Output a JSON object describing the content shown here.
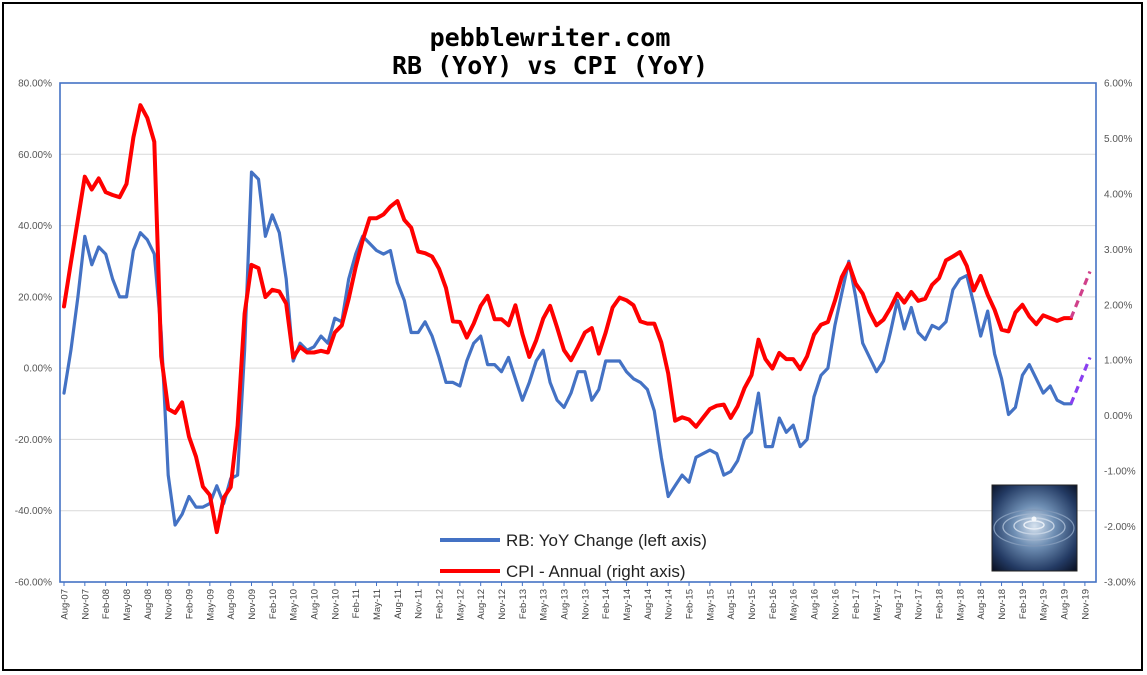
{
  "chart_data": {
    "type": "line",
    "title": "pebblewriter.com",
    "subtitle": "RB (YoY) vs CPI (YoY)",
    "x_labels": [
      "Aug-07",
      "Nov-07",
      "Feb-08",
      "May-08",
      "Aug-08",
      "Nov-08",
      "Feb-09",
      "May-09",
      "Aug-09",
      "Nov-09",
      "Feb-10",
      "May-10",
      "Aug-10",
      "Nov-10",
      "Feb-11",
      "May-11",
      "Aug-11",
      "Nov-11",
      "Feb-12",
      "May-12",
      "Aug-12",
      "Nov-12",
      "Feb-13",
      "May-13",
      "Aug-13",
      "Nov-13",
      "Feb-14",
      "May-14",
      "Aug-14",
      "Nov-14",
      "Feb-15",
      "May-15",
      "Aug-15",
      "Nov-15",
      "Feb-16",
      "May-16",
      "Aug-16",
      "Nov-16",
      "Feb-17",
      "May-17",
      "Aug-17",
      "Nov-17",
      "Feb-18",
      "May-18",
      "Aug-18",
      "Nov-18",
      "Feb-19",
      "May-19",
      "Aug-19",
      "Nov-19"
    ],
    "left_axis": {
      "ylim": [
        -60,
        80
      ],
      "tick_values": [
        -60,
        -40,
        -20,
        0,
        20,
        40,
        60,
        80
      ],
      "tick_labels": [
        "-60.00%",
        "-40.00%",
        "-20.00%",
        "0.00%",
        "20.00%",
        "40.00%",
        "60.00%",
        "80.00%"
      ]
    },
    "right_axis": {
      "ylim": [
        -3,
        6
      ],
      "tick_values": [
        -3,
        -2,
        -1,
        0,
        1,
        2,
        3,
        4,
        5,
        6
      ],
      "tick_labels": [
        "-3.00%",
        "-2.00%",
        "-1.00%",
        "0.00%",
        "1.00%",
        "2.00%",
        "3.00%",
        "4.00%",
        "5.00%",
        "6.00%"
      ]
    },
    "grid": "horizontal",
    "legend_placement": "bottom-center",
    "series": [
      {
        "name": "RB: YoY Change (left axis)",
        "axis": "left",
        "color": "#4472C4",
        "values": [
          -7,
          5,
          20,
          37,
          29,
          34,
          32,
          25,
          20,
          20,
          33,
          38,
          36,
          32,
          10,
          -30,
          -44,
          -41,
          -36,
          -39,
          -39,
          -38,
          -33,
          -38,
          -31,
          -30,
          5,
          55,
          53,
          37,
          43,
          38,
          25,
          2,
          7,
          5,
          6,
          9,
          7,
          14,
          13,
          25,
          32,
          37,
          35,
          33,
          32,
          33,
          24,
          19,
          10,
          10,
          13,
          9,
          3,
          -4,
          -4,
          -5,
          2,
          7,
          9,
          1,
          1,
          -1,
          3,
          -3,
          -9,
          -4,
          2,
          5,
          -4,
          -9,
          -11,
          -7,
          -1,
          -1,
          -9,
          -6,
          2,
          2,
          2,
          -1,
          -3,
          -4,
          -6,
          -12,
          -25,
          -36,
          -33,
          -30,
          -32,
          -25,
          -24,
          -23,
          -24,
          -30,
          -29,
          -26,
          -20,
          -18,
          -7,
          -22,
          -22,
          -14,
          -18,
          -16,
          -22,
          -20,
          -8,
          -2,
          0,
          12,
          21,
          30,
          20,
          7,
          3,
          -1,
          2,
          10,
          19,
          11,
          17,
          10,
          8,
          12,
          11,
          13,
          22,
          25,
          26,
          18,
          9,
          16,
          4,
          -3,
          -13,
          -11,
          -2,
          1,
          -3,
          -7,
          -5,
          -9,
          -10,
          -10
        ],
        "projection": [
          -10,
          3
        ]
      },
      {
        "name": "CPI - Annual (right axis)",
        "axis": "right",
        "color": "#FF0000",
        "values": [
          1.97,
          2.76,
          3.54,
          4.31,
          4.08,
          4.28,
          4.03,
          3.98,
          3.94,
          4.18,
          5.02,
          5.6,
          5.37,
          4.94,
          1.07,
          0.12,
          0.05,
          0.24,
          -0.38,
          -0.74,
          -1.28,
          -1.43,
          -2.1,
          -1.48,
          -1.29,
          -0.18,
          1.84,
          2.72,
          2.66,
          2.14,
          2.27,
          2.24,
          2.02,
          1.05,
          1.24,
          1.14,
          1.14,
          1.17,
          1.14,
          1.5,
          1.63,
          2.11,
          2.68,
          3.16,
          3.56,
          3.56,
          3.63,
          3.77,
          3.87,
          3.53,
          3.39,
          2.96,
          2.93,
          2.87,
          2.65,
          2.3,
          1.7,
          1.69,
          1.41,
          1.66,
          1.98,
          2.16,
          1.74,
          1.74,
          1.63,
          1.99,
          1.47,
          1.06,
          1.36,
          1.75,
          1.98,
          1.59,
          1.18,
          1.0,
          1.24,
          1.5,
          1.58,
          1.12,
          1.5,
          1.95,
          2.13,
          2.08,
          1.99,
          1.7,
          1.66,
          1.66,
          1.32,
          0.76,
          -0.09,
          -0.03,
          -0.07,
          -0.2,
          -0.04,
          0.12,
          0.18,
          0.2,
          -0.04,
          0.17,
          0.5,
          0.73,
          1.37,
          1.02,
          0.85,
          1.13,
          1.02,
          1.02,
          0.84,
          1.07,
          1.46,
          1.64,
          1.69,
          2.07,
          2.5,
          2.74,
          2.38,
          2.2,
          1.87,
          1.63,
          1.73,
          1.94,
          2.2,
          2.04,
          2.23,
          2.07,
          2.11,
          2.36,
          2.48,
          2.8,
          2.87,
          2.95,
          2.7,
          2.26,
          2.52,
          2.18,
          1.91,
          1.55,
          1.52,
          1.86,
          2.0,
          1.79,
          1.65,
          1.81,
          1.76,
          1.71,
          1.76,
          1.76
        ],
        "projection": [
          1.76,
          2.6
        ]
      }
    ]
  }
}
